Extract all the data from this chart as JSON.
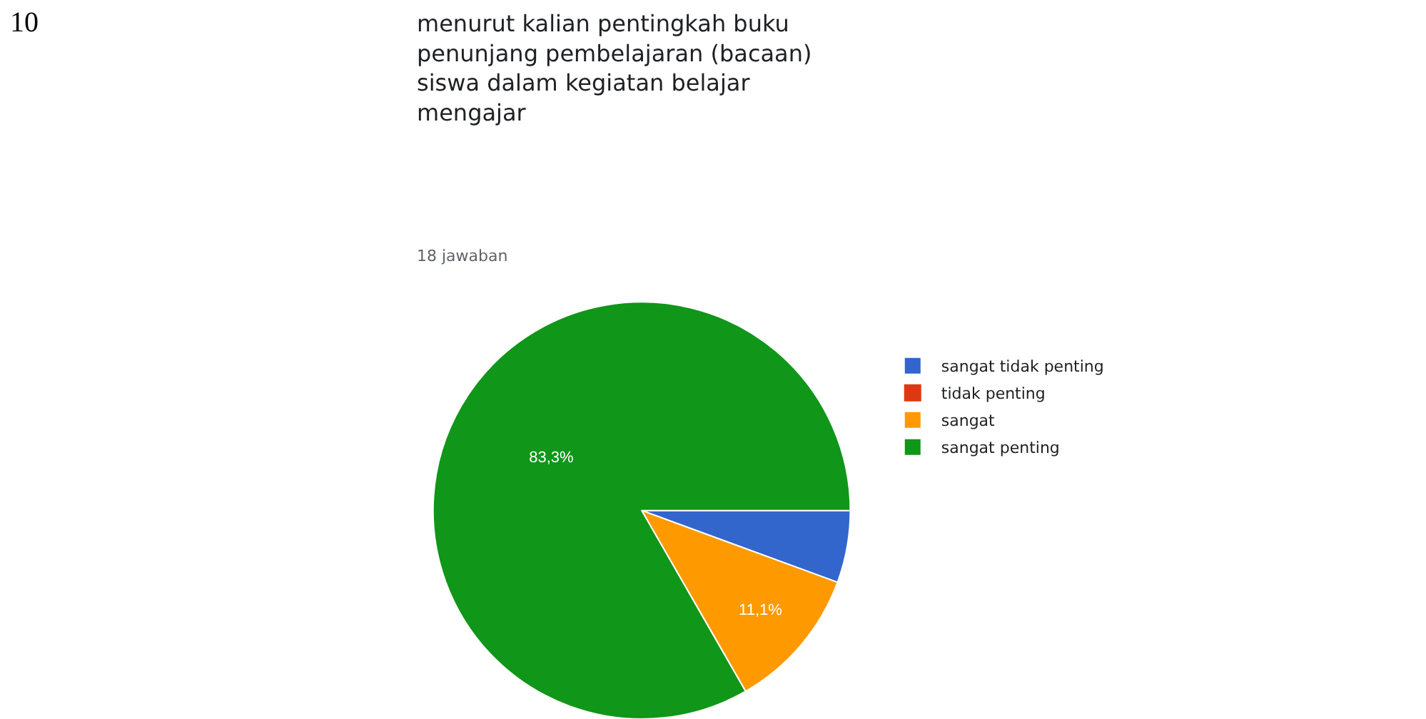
{
  "chart_data": {
    "type": "pie",
    "title": "menurut kalian pentingkah buku\npenunjang pembelajaran (bacaan)\nsiswa dalam kegiatan belajar\nmengajar",
    "subtitle": "18 jawaban",
    "categories": [
      "sangat tidak penting",
      "tidak penting",
      "sangat",
      "sangat penting"
    ],
    "values": [
      5.6,
      0,
      11.1,
      83.3
    ],
    "colors": [
      "#3366cc",
      "#dc3912",
      "#ff9900",
      "#109618"
    ],
    "value_labels": [
      null,
      null,
      "11,1%",
      "83,3%"
    ],
    "legend": "right",
    "annotations": [
      "10"
    ]
  }
}
